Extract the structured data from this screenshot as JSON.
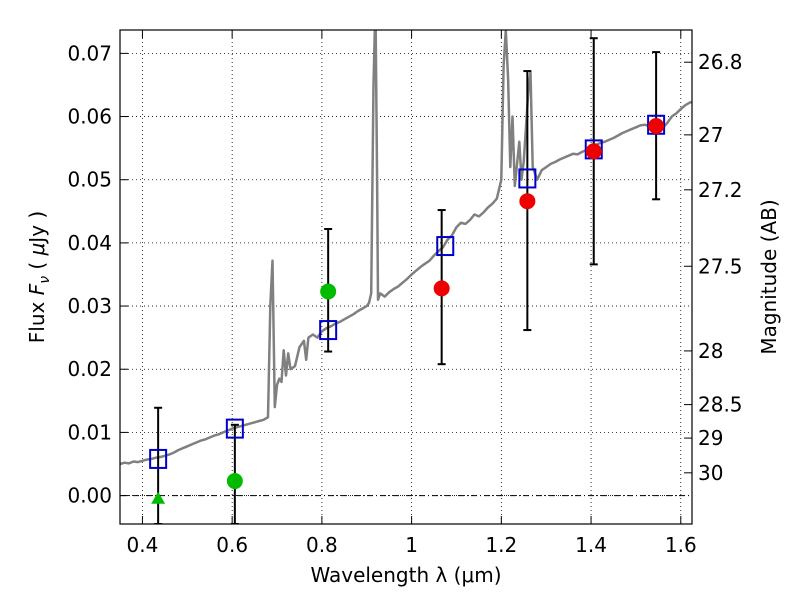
{
  "chart_data": {
    "type": "scatter",
    "xlabel": "Wavelength  λ (μm)",
    "ylabel_parts": [
      "Flux  ",
      "F",
      "ν",
      "  ( ",
      "μ",
      "Jy )"
    ],
    "ylabel_right": "Magnitude (AB)",
    "xlim": [
      0.35,
      1.625
    ],
    "ylim": [
      -0.0045,
      0.0737
    ],
    "grid": true,
    "grid_style": "dotted",
    "x_ticks": [
      0.4,
      0.6,
      0.8,
      1.0,
      1.2,
      1.4,
      1.6
    ],
    "x_tick_labels": [
      "0.4",
      "0.6",
      "0.8",
      "1",
      "1.2",
      "1.4",
      "1.6"
    ],
    "y_ticks": [
      0.0,
      0.01,
      0.02,
      0.03,
      0.04,
      0.05,
      0.06,
      0.07
    ],
    "y_tick_labels": [
      "0.00",
      "0.01",
      "0.02",
      "0.03",
      "0.04",
      "0.05",
      "0.06",
      "0.07"
    ],
    "right_ticks": [
      {
        "label": "26.8",
        "flux": 0.0686
      },
      {
        "label": "27",
        "flux": 0.0571
      },
      {
        "label": "27.2",
        "flux": 0.0484
      },
      {
        "label": "27.5",
        "flux": 0.0363
      },
      {
        "label": "28",
        "flux": 0.0229
      },
      {
        "label": "28.5",
        "flux": 0.0144
      },
      {
        "label": "29",
        "flux": 0.0091
      },
      {
        "label": "30",
        "flux": 0.0036
      }
    ],
    "zero_line": 0.0,
    "colors": {
      "model": "#808080",
      "template_box": "#0000cc",
      "green": "#00bb00",
      "red": "#ee0000",
      "errorbar": "#000000"
    },
    "model_spectrum": [
      [
        0.35,
        0.005
      ],
      [
        0.36,
        0.0052
      ],
      [
        0.37,
        0.0051
      ],
      [
        0.38,
        0.0054
      ],
      [
        0.39,
        0.0053
      ],
      [
        0.4,
        0.0055
      ],
      [
        0.41,
        0.0057
      ],
      [
        0.42,
        0.0058
      ],
      [
        0.43,
        0.006
      ],
      [
        0.44,
        0.0061
      ],
      [
        0.45,
        0.0063
      ],
      [
        0.46,
        0.0065
      ],
      [
        0.47,
        0.0068
      ],
      [
        0.48,
        0.0072
      ],
      [
        0.49,
        0.0075
      ],
      [
        0.5,
        0.0078
      ],
      [
        0.51,
        0.0081
      ],
      [
        0.52,
        0.0084
      ],
      [
        0.53,
        0.0087
      ],
      [
        0.54,
        0.0089
      ],
      [
        0.55,
        0.0092
      ],
      [
        0.56,
        0.0095
      ],
      [
        0.57,
        0.0097
      ],
      [
        0.58,
        0.01
      ],
      [
        0.59,
        0.0103
      ],
      [
        0.6,
        0.0106
      ],
      [
        0.61,
        0.0108
      ],
      [
        0.62,
        0.011
      ],
      [
        0.63,
        0.0112
      ],
      [
        0.64,
        0.0114
      ],
      [
        0.65,
        0.0116
      ],
      [
        0.66,
        0.0118
      ],
      [
        0.67,
        0.012
      ],
      [
        0.68,
        0.0124
      ],
      [
        0.685,
        0.03
      ],
      [
        0.69,
        0.0372
      ],
      [
        0.695,
        0.014
      ],
      [
        0.7,
        0.0175
      ],
      [
        0.705,
        0.0185
      ],
      [
        0.71,
        0.018
      ],
      [
        0.715,
        0.023
      ],
      [
        0.72,
        0.019
      ],
      [
        0.725,
        0.0225
      ],
      [
        0.73,
        0.02
      ],
      [
        0.74,
        0.0205
      ],
      [
        0.75,
        0.0235
      ],
      [
        0.76,
        0.0245
      ],
      [
        0.765,
        0.0215
      ],
      [
        0.77,
        0.025
      ],
      [
        0.78,
        0.0255
      ],
      [
        0.79,
        0.025
      ],
      [
        0.8,
        0.026
      ],
      [
        0.81,
        0.0265
      ],
      [
        0.82,
        0.0268
      ],
      [
        0.83,
        0.0272
      ],
      [
        0.84,
        0.0275
      ],
      [
        0.85,
        0.0279
      ],
      [
        0.86,
        0.0283
      ],
      [
        0.87,
        0.0287
      ],
      [
        0.88,
        0.0292
      ],
      [
        0.89,
        0.0296
      ],
      [
        0.9,
        0.03
      ],
      [
        0.905,
        0.0305
      ],
      [
        0.91,
        0.032
      ],
      [
        0.915,
        0.065
      ],
      [
        0.918,
        0.0737
      ],
      [
        0.92,
        0.0737
      ],
      [
        0.923,
        0.05
      ],
      [
        0.925,
        0.031
      ],
      [
        0.93,
        0.032
      ],
      [
        0.94,
        0.0315
      ],
      [
        0.95,
        0.0322
      ],
      [
        0.96,
        0.0327
      ],
      [
        0.97,
        0.0331
      ],
      [
        0.98,
        0.0337
      ],
      [
        0.99,
        0.0343
      ],
      [
        1.0,
        0.035
      ],
      [
        1.01,
        0.0356
      ],
      [
        1.02,
        0.0362
      ],
      [
        1.03,
        0.0367
      ],
      [
        1.04,
        0.0372
      ],
      [
        1.05,
        0.038
      ],
      [
        1.06,
        0.0387
      ],
      [
        1.07,
        0.0393
      ],
      [
        1.08,
        0.0405
      ],
      [
        1.09,
        0.0412
      ],
      [
        1.1,
        0.0425
      ],
      [
        1.11,
        0.0432
      ],
      [
        1.12,
        0.043
      ],
      [
        1.13,
        0.0436
      ],
      [
        1.14,
        0.0445
      ],
      [
        1.15,
        0.0442
      ],
      [
        1.16,
        0.0448
      ],
      [
        1.17,
        0.0456
      ],
      [
        1.18,
        0.0462
      ],
      [
        1.19,
        0.047
      ],
      [
        1.2,
        0.05
      ],
      [
        1.205,
        0.068
      ],
      [
        1.21,
        0.0737
      ],
      [
        1.215,
        0.066
      ],
      [
        1.22,
        0.052
      ],
      [
        1.225,
        0.06
      ],
      [
        1.23,
        0.049
      ],
      [
        1.24,
        0.056
      ],
      [
        1.245,
        0.05
      ],
      [
        1.25,
        0.053
      ],
      [
        1.26,
        0.064
      ],
      [
        1.265,
        0.067
      ],
      [
        1.27,
        0.052
      ],
      [
        1.28,
        0.05
      ],
      [
        1.29,
        0.0515
      ],
      [
        1.3,
        0.052
      ],
      [
        1.31,
        0.0525
      ],
      [
        1.32,
        0.0528
      ],
      [
        1.33,
        0.0532
      ],
      [
        1.34,
        0.0535
      ],
      [
        1.35,
        0.0538
      ],
      [
        1.36,
        0.0541
      ],
      [
        1.37,
        0.054
      ],
      [
        1.38,
        0.0544
      ],
      [
        1.39,
        0.0547
      ],
      [
        1.4,
        0.055
      ],
      [
        1.41,
        0.0555
      ],
      [
        1.42,
        0.0558
      ],
      [
        1.43,
        0.056
      ],
      [
        1.44,
        0.0563
      ],
      [
        1.45,
        0.0566
      ],
      [
        1.46,
        0.057
      ],
      [
        1.47,
        0.0574
      ],
      [
        1.48,
        0.0577
      ],
      [
        1.49,
        0.058
      ],
      [
        1.5,
        0.0583
      ],
      [
        1.51,
        0.0586
      ],
      [
        1.52,
        0.0587
      ],
      [
        1.53,
        0.0585
      ],
      [
        1.54,
        0.058
      ],
      [
        1.55,
        0.0578
      ],
      [
        1.56,
        0.0582
      ],
      [
        1.57,
        0.059
      ],
      [
        1.58,
        0.06
      ],
      [
        1.59,
        0.0605
      ],
      [
        1.6,
        0.0612
      ],
      [
        1.61,
        0.0618
      ],
      [
        1.62,
        0.0622
      ],
      [
        1.625,
        0.0623
      ]
    ],
    "template_boxes": [
      {
        "x": 0.435,
        "y": 0.0058
      },
      {
        "x": 0.606,
        "y": 0.0106
      },
      {
        "x": 0.814,
        "y": 0.0262
      },
      {
        "x": 1.075,
        "y": 0.0395
      },
      {
        "x": 1.258,
        "y": 0.0502
      },
      {
        "x": 1.406,
        "y": 0.0548
      },
      {
        "x": 1.545,
        "y": 0.0587
      }
    ],
    "detections": [
      {
        "x": 0.606,
        "y": 0.0023,
        "color": "green",
        "shape": "circle"
      },
      {
        "x": 0.814,
        "y": 0.0323,
        "color": "green",
        "shape": "circle"
      },
      {
        "x": 1.067,
        "y": 0.0328,
        "color": "red",
        "shape": "circle"
      },
      {
        "x": 1.258,
        "y": 0.0466,
        "color": "red",
        "shape": "circle"
      },
      {
        "x": 1.406,
        "y": 0.0545,
        "color": "red",
        "shape": "circle"
      },
      {
        "x": 1.545,
        "y": 0.0585,
        "color": "red",
        "shape": "circle"
      },
      {
        "x": 0.435,
        "y": -0.0005,
        "color": "green",
        "shape": "triangle"
      }
    ],
    "error_bars": [
      {
        "x": 0.435,
        "low": -0.0045,
        "high": 0.0139
      },
      {
        "x": 0.606,
        "low": -0.0045,
        "high": 0.0112
      },
      {
        "x": 0.814,
        "low": 0.0228,
        "high": 0.0422
      },
      {
        "x": 1.067,
        "low": 0.0208,
        "high": 0.0452
      },
      {
        "x": 1.258,
        "low": 0.0262,
        "high": 0.0672
      },
      {
        "x": 1.406,
        "low": 0.0366,
        "high": 0.0724
      },
      {
        "x": 1.545,
        "low": 0.0469,
        "high": 0.0702
      }
    ]
  }
}
